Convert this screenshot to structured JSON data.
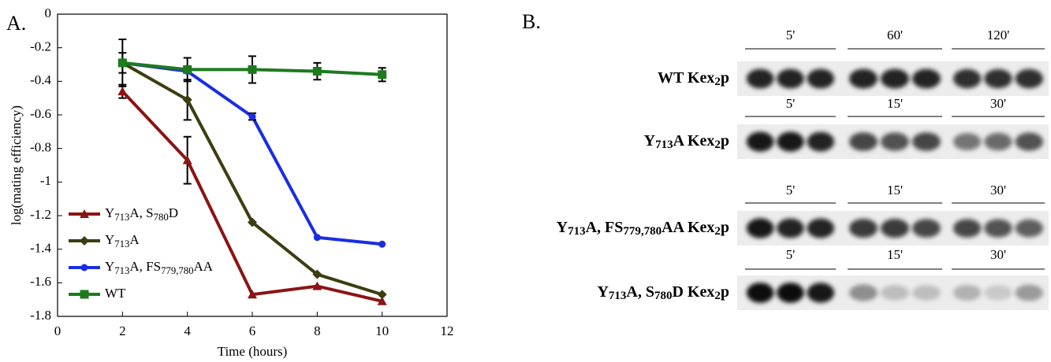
{
  "chart_data": {
    "type": "line",
    "panel_label": "A.",
    "x_label": "Time (hours)",
    "y_label": "log(mating efficiency)",
    "xlim": [
      0,
      12
    ],
    "xticks": [
      0,
      2,
      4,
      6,
      8,
      10,
      12
    ],
    "ylim": [
      -1.8,
      0
    ],
    "yticks": [
      0,
      -0.2,
      -0.4,
      -0.6,
      -0.8,
      -1,
      -1.2,
      -1.4,
      -1.6,
      -1.8
    ],
    "x": [
      2,
      4,
      6,
      8,
      10
    ],
    "legend": "lower left",
    "series": [
      {
        "name": "Y713A, S780D",
        "color": "#8b1414",
        "marker": "triangle",
        "values": [
          -0.46,
          -0.87,
          -1.67,
          -1.62,
          -1.71
        ],
        "errors": [
          0.04,
          0.14,
          null,
          null,
          null
        ]
      },
      {
        "name": "Y713A",
        "color": "#3d3d12",
        "marker": "diamond",
        "values": [
          -0.29,
          -0.51,
          -1.24,
          -1.55,
          -1.67
        ],
        "errors": [
          0.14,
          0.12,
          null,
          null,
          null
        ]
      },
      {
        "name": "Y713A, FS779,780AA",
        "color": "#1a2ee0",
        "marker": "circle",
        "values": [
          -0.29,
          -0.34,
          -0.61,
          -1.33,
          -1.37
        ],
        "errors": [
          null,
          null,
          0.02,
          null,
          null
        ]
      },
      {
        "name": "WT",
        "color": "#1d7a1d",
        "marker": "square",
        "values": [
          -0.29,
          -0.33,
          -0.33,
          -0.34,
          -0.36
        ],
        "errors": [
          0.06,
          0.07,
          0.08,
          0.05,
          0.04
        ]
      }
    ]
  },
  "panel_b": {
    "panel_label": "B.",
    "rows": [
      {
        "label": "WT Kex2p",
        "times": [
          "5'",
          "60'",
          "120'"
        ]
      },
      {
        "label": "Y713A Kex2p",
        "times": [
          "5'",
          "15'",
          "30'"
        ]
      },
      {
        "label": "Y713A, FS779,780AA Kex2p",
        "times": [
          "5'",
          "15'",
          "30'"
        ]
      },
      {
        "label": "Y713A, S780D Kex2p",
        "times": [
          "5'",
          "15'",
          "30'"
        ]
      }
    ]
  }
}
